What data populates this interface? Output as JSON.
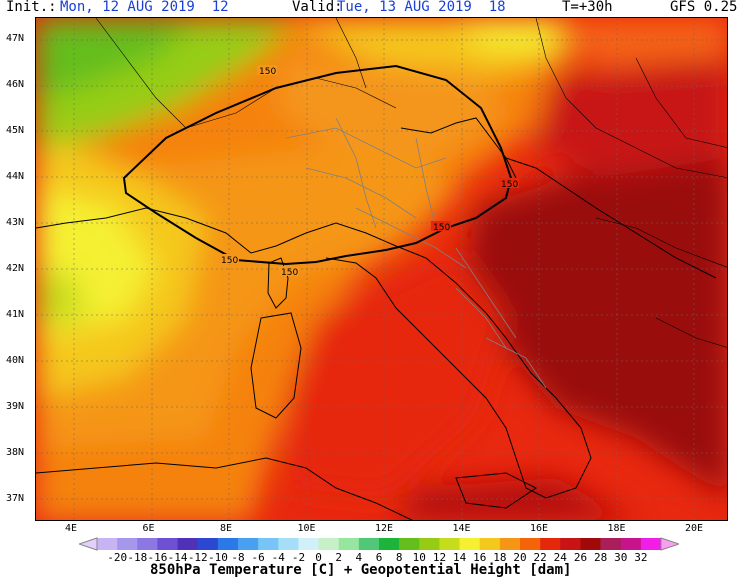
{
  "header": {
    "init_label": "Init.:",
    "init_value": "Mon, 12 AUG 2019  12",
    "valid_label": "Valid:",
    "valid_value": "Tue, 13 AUG 2019  18",
    "step": "T=+30h",
    "model": "GFS 0.25"
  },
  "map": {
    "lat_labels": [
      "47N",
      "46N",
      "45N",
      "44N",
      "43N",
      "42N",
      "41N",
      "40N",
      "39N",
      "38N",
      "37N"
    ],
    "lon_labels": [
      "4E",
      "6E",
      "8E",
      "10E",
      "12E",
      "14E",
      "16E",
      "18E",
      "20E"
    ],
    "contour_label": "150",
    "lat_range": [
      36.5,
      47.5
    ],
    "lon_range": [
      3.1,
      21.0
    ]
  },
  "legend": {
    "ticks": [
      "-20",
      "-18",
      "-16",
      "-14",
      "-12",
      "-10",
      "-8",
      "-6",
      "-4",
      "-2",
      "0",
      "2",
      "4",
      "6",
      "8",
      "10",
      "12",
      "14",
      "16",
      "18",
      "20",
      "22",
      "24",
      "26",
      "28",
      "30",
      "32"
    ],
    "colors": [
      "#c8b4f5",
      "#a696ee",
      "#8c78e2",
      "#6e50d2",
      "#4e32b8",
      "#2c48d2",
      "#2c78e6",
      "#4aa0f0",
      "#78c4f5",
      "#a6def8",
      "#d2f0fa",
      "#c8f0c8",
      "#96e6a0",
      "#50c878",
      "#1eb43c",
      "#64be1e",
      "#96cd14",
      "#c8dc1e",
      "#f5f032",
      "#f5c81e",
      "#f59614",
      "#f5640a",
      "#e6280a",
      "#c81414",
      "#a00a0a",
      "#aa1e5a",
      "#c8148c",
      "#f01ee6"
    ],
    "caption": "850hPa Temperature [C] + Geopotential Height [dam]"
  }
}
